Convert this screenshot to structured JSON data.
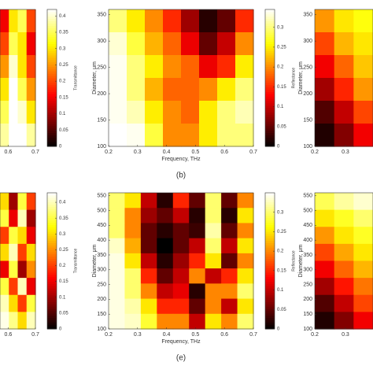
{
  "chart_data": [
    {
      "type": "heatmap",
      "xlim": [
        0.57,
        0.7
      ],
      "xticks": [
        0.6,
        0.7
      ],
      "ylim": [
        100,
        360
      ],
      "z": [
        [
          0.15,
          0.3,
          0.35,
          0.2
        ],
        [
          0.2,
          0.35,
          0.3,
          0.15
        ],
        [
          0.25,
          0.4,
          0.3,
          0.2
        ],
        [
          0.3,
          0.42,
          0.35,
          0.25
        ],
        [
          0.35,
          0.42,
          0.4,
          0.3
        ],
        [
          0.38,
          0.42,
          0.42,
          0.38
        ]
      ],
      "clim": [
        0,
        0.42
      ],
      "cticks": [
        0,
        0.05,
        0.1,
        0.15,
        0.2,
        0.25,
        0.3,
        0.35,
        0.4
      ],
      "clabel": "Transmittance"
    },
    {
      "type": "heatmap",
      "xlim": [
        0.2,
        0.7
      ],
      "xticks": [
        0.2,
        0.3,
        0.4,
        0.5,
        0.6,
        0.7
      ],
      "ylim": [
        100,
        360
      ],
      "yticks": [
        100,
        150,
        200,
        250,
        300,
        350
      ],
      "xlabel": "Frequency, THz",
      "ylabel": "Diameter, μm",
      "caption": "(b)",
      "z": [
        [
          0.3,
          0.25,
          0.2,
          0.15,
          0.08,
          0.02,
          0.05,
          0.15
        ],
        [
          0.33,
          0.28,
          0.22,
          0.18,
          0.12,
          0.05,
          0.1,
          0.2
        ],
        [
          0.34,
          0.3,
          0.25,
          0.2,
          0.18,
          0.12,
          0.15,
          0.25
        ],
        [
          0.34,
          0.3,
          0.22,
          0.18,
          0.18,
          0.2,
          0.25,
          0.3
        ],
        [
          0.34,
          0.32,
          0.25,
          0.2,
          0.18,
          0.25,
          0.3,
          0.32
        ],
        [
          0.345,
          0.34,
          0.28,
          0.2,
          0.2,
          0.25,
          0.3,
          0.3
        ]
      ],
      "clim": [
        0,
        0.345
      ],
      "cticks": [
        0,
        0.05,
        0.1,
        0.15,
        0.2,
        0.25,
        0.3
      ],
      "clabel": "Reflectance"
    },
    {
      "type": "heatmap",
      "xlim": [
        0.2,
        0.39
      ],
      "xticks": [
        0.2,
        0.3
      ],
      "ylim": [
        100,
        360
      ],
      "yticks": [
        100,
        150,
        200,
        250,
        300,
        350
      ],
      "ylabel": "Diameter, μm",
      "z": [
        [
          0.25,
          0.3,
          0.32
        ],
        [
          0.2,
          0.27,
          0.3
        ],
        [
          0.15,
          0.22,
          0.28
        ],
        [
          0.1,
          0.18,
          0.25
        ],
        [
          0.05,
          0.12,
          0.2
        ],
        [
          0.02,
          0.08,
          0.15
        ]
      ],
      "clim": [
        0,
        0.42
      ]
    },
    {
      "type": "heatmap",
      "xlim": [
        0.57,
        0.7
      ],
      "xticks": [
        0.6,
        0.7
      ],
      "ylim": [
        100,
        560
      ],
      "z": [
        [
          0.3,
          0.1,
          0.35,
          0.2
        ],
        [
          0.35,
          0.15,
          0.4,
          0.1
        ],
        [
          0.2,
          0.35,
          0.3,
          0.15
        ],
        [
          0.3,
          0.4,
          0.2,
          0.3
        ],
        [
          0.15,
          0.35,
          0.1,
          0.25
        ],
        [
          0.35,
          0.2,
          0.4,
          0.15
        ],
        [
          0.4,
          0.3,
          0.2,
          0.35
        ],
        [
          0.42,
          0.38,
          0.3,
          0.4
        ]
      ],
      "clim": [
        0,
        0.43
      ],
      "cticks": [
        0,
        0.05,
        0.1,
        0.15,
        0.2,
        0.25,
        0.3,
        0.35,
        0.4
      ],
      "clabel": "Transmittance"
    },
    {
      "type": "heatmap",
      "xlim": [
        0.2,
        0.7
      ],
      "xticks": [
        0.2,
        0.3,
        0.4,
        0.5,
        0.6,
        0.7
      ],
      "ylim": [
        100,
        560
      ],
      "yticks": [
        100,
        150,
        200,
        250,
        300,
        350,
        400,
        450,
        500,
        550
      ],
      "xlabel": "Frequency, THz",
      "ylabel": "Diameter, μm",
      "caption": "(e)",
      "z": [
        [
          0.3,
          0.25,
          0.1,
          0.02,
          0.15,
          0.05,
          0.3,
          0.05,
          0.2
        ],
        [
          0.3,
          0.2,
          0.08,
          0.05,
          0.1,
          0.02,
          0.3,
          0.02,
          0.25
        ],
        [
          0.3,
          0.2,
          0.05,
          0.02,
          0.05,
          0.03,
          0.32,
          0.05,
          0.2
        ],
        [
          0.33,
          0.22,
          0.05,
          0.0,
          0.05,
          0.1,
          0.3,
          0.1,
          0.25
        ],
        [
          0.34,
          0.25,
          0.1,
          0.02,
          0.08,
          0.15,
          0.25,
          0.05,
          0.2
        ],
        [
          0.34,
          0.3,
          0.15,
          0.05,
          0.1,
          0.2,
          0.1,
          0.15,
          0.25
        ],
        [
          0.34,
          0.3,
          0.2,
          0.1,
          0.12,
          0.02,
          0.2,
          0.2,
          0.3
        ],
        [
          0.34,
          0.32,
          0.25,
          0.15,
          0.15,
          0.05,
          0.2,
          0.1,
          0.25
        ],
        [
          0.34,
          0.33,
          0.28,
          0.2,
          0.2,
          0.1,
          0.25,
          0.2,
          0.3
        ]
      ],
      "clim": [
        0,
        0.35
      ],
      "cticks": [
        0,
        0.05,
        0.1,
        0.15,
        0.2,
        0.25,
        0.3
      ],
      "clabel": "Reflectance"
    },
    {
      "type": "heatmap",
      "xlim": [
        0.2,
        0.39
      ],
      "xticks": [
        0.2,
        0.3
      ],
      "ylim": [
        100,
        560
      ],
      "yticks": [
        100,
        150,
        200,
        250,
        300,
        350,
        400,
        450,
        500,
        550
      ],
      "ylabel": "Diameter, μm",
      "z": [
        [
          0.35,
          0.38,
          0.4
        ],
        [
          0.3,
          0.33,
          0.36
        ],
        [
          0.25,
          0.3,
          0.33
        ],
        [
          0.2,
          0.26,
          0.3
        ],
        [
          0.15,
          0.22,
          0.27
        ],
        [
          0.1,
          0.17,
          0.23
        ],
        [
          0.05,
          0.12,
          0.2
        ],
        [
          0.02,
          0.08,
          0.15
        ]
      ],
      "clim": [
        0,
        0.42
      ]
    }
  ]
}
